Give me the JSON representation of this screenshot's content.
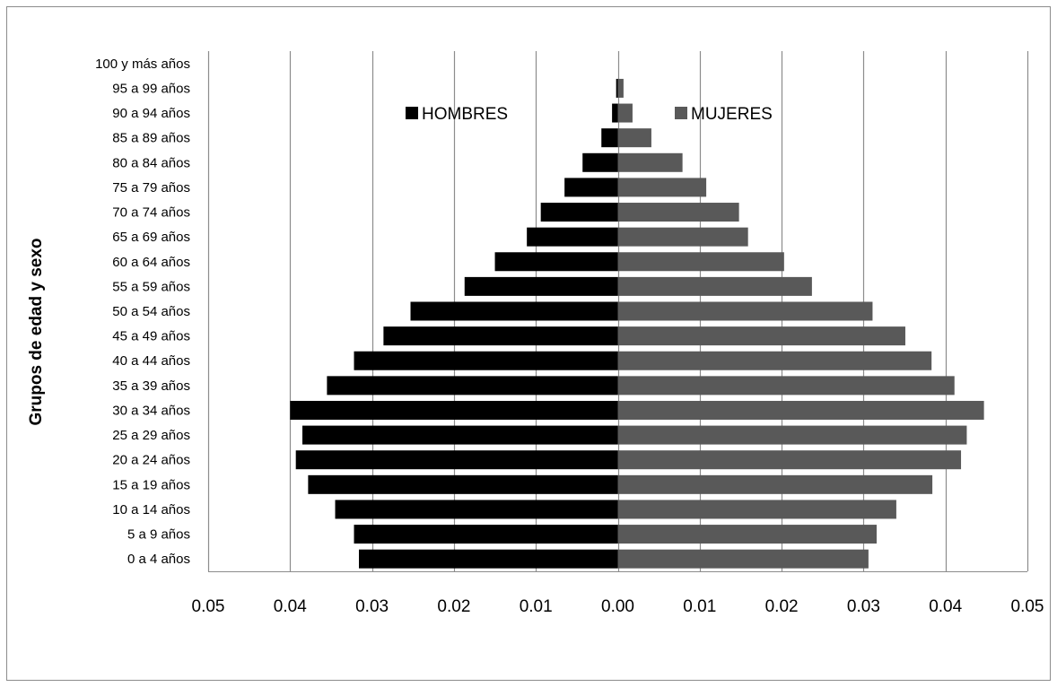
{
  "chart_data": {
    "type": "bar",
    "orientation": "horizontal",
    "title": "",
    "xlabel": "",
    "ylabel": "Grupos de edad y sexo",
    "categories": [
      "0 a 4 años",
      "5 a 9 años",
      "10 a 14 años",
      "15 a 19 años",
      "20 a 24 años",
      "25 a 29 años",
      "30 a 34 años",
      "35 a 39 años",
      "40 a 44 años",
      "45 a 49 años",
      "50 a 54 años",
      "55 a 59 años",
      "60 a 64 años",
      "65 a 69 años",
      "70 a 74 años",
      "75 a 79 años",
      "80 a 84 años",
      "85 a 89 años",
      "90 a 94 años",
      "95 a 99 años",
      "100 y más años"
    ],
    "series": [
      {
        "name": "HOMBRES",
        "color": "#000000",
        "values": [
          -0.0316,
          -0.0322,
          -0.0345,
          -0.0378,
          -0.0393,
          -0.0385,
          -0.04,
          -0.0355,
          -0.0322,
          -0.0286,
          -0.0253,
          -0.0187,
          -0.015,
          -0.0111,
          -0.0094,
          -0.0065,
          -0.0043,
          -0.002,
          -0.0007,
          -0.0002,
          0.0
        ]
      },
      {
        "name": "MUJERES",
        "color": "#595959",
        "values": [
          0.0306,
          0.0316,
          0.034,
          0.0384,
          0.0419,
          0.0426,
          0.0447,
          0.0411,
          0.0383,
          0.0351,
          0.0311,
          0.0237,
          0.0203,
          0.0159,
          0.0148,
          0.0108,
          0.0079,
          0.0041,
          0.0018,
          0.0007,
          0.0
        ]
      }
    ],
    "xlim": [
      -0.05,
      0.05
    ],
    "xticks": [
      -0.05,
      -0.04,
      -0.03,
      -0.02,
      -0.01,
      0.0,
      0.01,
      0.02,
      0.03,
      0.04,
      0.05
    ],
    "xtick_labels": [
      "0.05",
      "0.04",
      "0.03",
      "0.02",
      "0.01",
      "0.00",
      "0.01",
      "0.02",
      "0.03",
      "0.04",
      "0.05"
    ],
    "grid": "vertical",
    "legend": {
      "position": "top-center",
      "entries": [
        "HOMBRES",
        "MUJERES"
      ]
    }
  }
}
